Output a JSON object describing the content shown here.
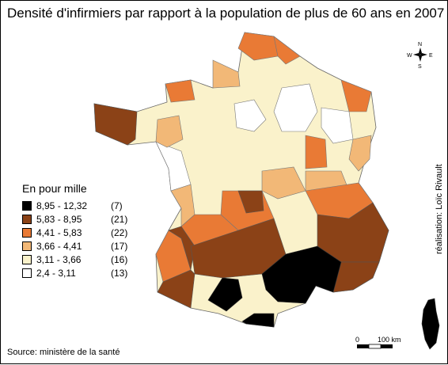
{
  "title": "Densité d'infirmiers par rapport à la population de plus de 60 ans en 2007",
  "legend": {
    "heading": "En pour mille",
    "classes": [
      {
        "range": "8,95 - 12,32",
        "count": "(7)",
        "color": "#000000"
      },
      {
        "range": "5,83 -   8,95",
        "count": "(21)",
        "color": "#8b4217"
      },
      {
        "range": "4,41 -   5,83",
        "count": "(22)",
        "color": "#e97a35"
      },
      {
        "range": "3,66 -   4,41",
        "count": "(17)",
        "color": "#f2b877"
      },
      {
        "range": "3,11 -   3,66",
        "count": "(16)",
        "color": "#faf2cb"
      },
      {
        "range": "2,4   -   3,11",
        "count": "(13)",
        "color": "#ffffff"
      }
    ]
  },
  "source": "Source: ministère de la santé",
  "author": "réalisation: Loïc Rivault",
  "scale": {
    "zero": "0",
    "distance": "100 km"
  },
  "compass": {
    "north": "N",
    "south": "S",
    "east": "E",
    "west": "W"
  }
}
